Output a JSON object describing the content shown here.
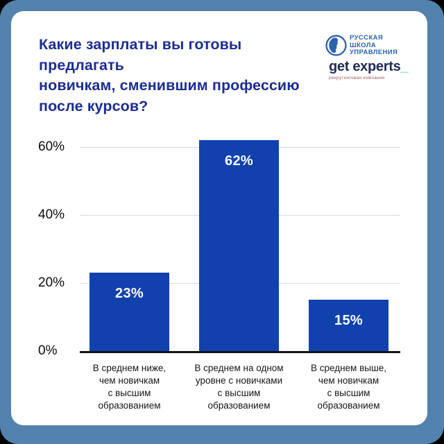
{
  "frame": {
    "outer_color": "#5282ad",
    "card_color": "#ffffff"
  },
  "header": {
    "title": "Какие зарплаты вы готовы предлагать\nновичкам, сменившим профессию\nпосле курсов?",
    "title_color": "#1c2d92"
  },
  "logos": {
    "rsu": {
      "text": "РУССКАЯ\nШКОЛА\nУПРАВЛЕНИЯ",
      "color": "#2a63ae"
    },
    "get_experts": {
      "name": "get experts",
      "underscore": "_",
      "tagline": "рекрутинговая компания",
      "name_color": "#232c58",
      "underscore_color": "#3cc2b4",
      "tagline_color": "#a05a60"
    }
  },
  "chart_data": {
    "type": "bar",
    "title": "Какие зарплаты вы готовы предлагать новичкам, сменившим профессию после курсов?",
    "categories": [
      "В среднем ниже,\nчем новичкам\nс высшим\nобразованием",
      "В среднем на одном\nуровне с новичками\nс высшим\nобразованием",
      "В среднем выше,\nчем новичкам\nс высшим\nобразованием"
    ],
    "values": [
      23,
      62,
      15
    ],
    "value_labels": [
      "23%",
      "62%",
      "15%"
    ],
    "y_ticks": [
      "0%",
      "20%",
      "40%",
      "60%"
    ],
    "y_tick_values": [
      0,
      20,
      40,
      60
    ],
    "ylim": [
      0,
      65
    ],
    "xlabel": "",
    "ylabel": "",
    "grid": true,
    "legend": "none",
    "bar_color": "#1141ad",
    "gridline_color": "#d9d9d9",
    "axis_line_color": "#141414",
    "value_label_color": "#ffffff",
    "tick_label_color": "#0b0b0b"
  }
}
